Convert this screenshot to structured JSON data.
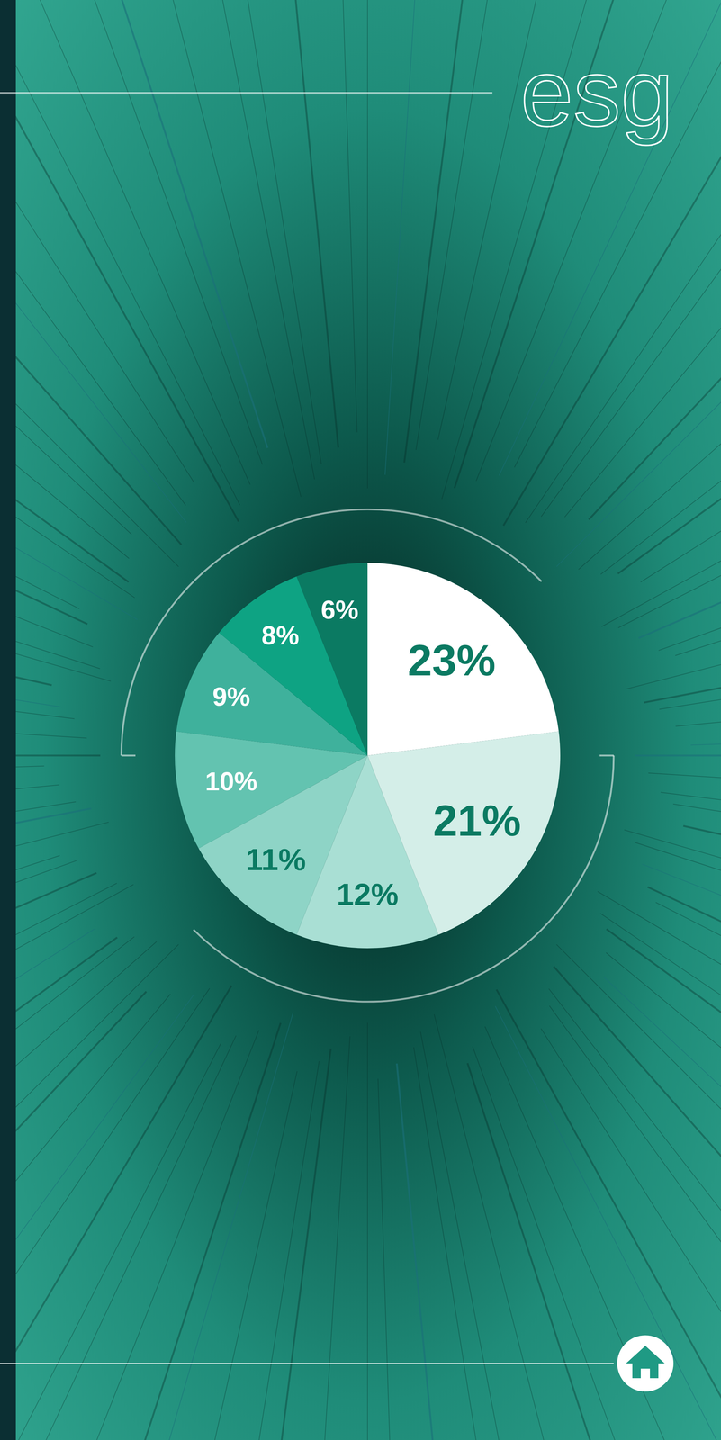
{
  "chart_data": {
    "type": "pie",
    "title": "esg",
    "values": [
      23,
      21,
      12,
      11,
      10,
      9,
      8,
      6
    ],
    "value_labels": [
      "23%",
      "21%",
      "12%",
      "11%",
      "10%",
      "9%",
      "8%",
      "6%"
    ],
    "colors": [
      "#ffffff",
      "#d4eee8",
      "#a9dfd4",
      "#8ed4c6",
      "#63c3b0",
      "#3fb19c",
      "#0ea383",
      "#0b7a62"
    ],
    "data_labels": true
  }
}
